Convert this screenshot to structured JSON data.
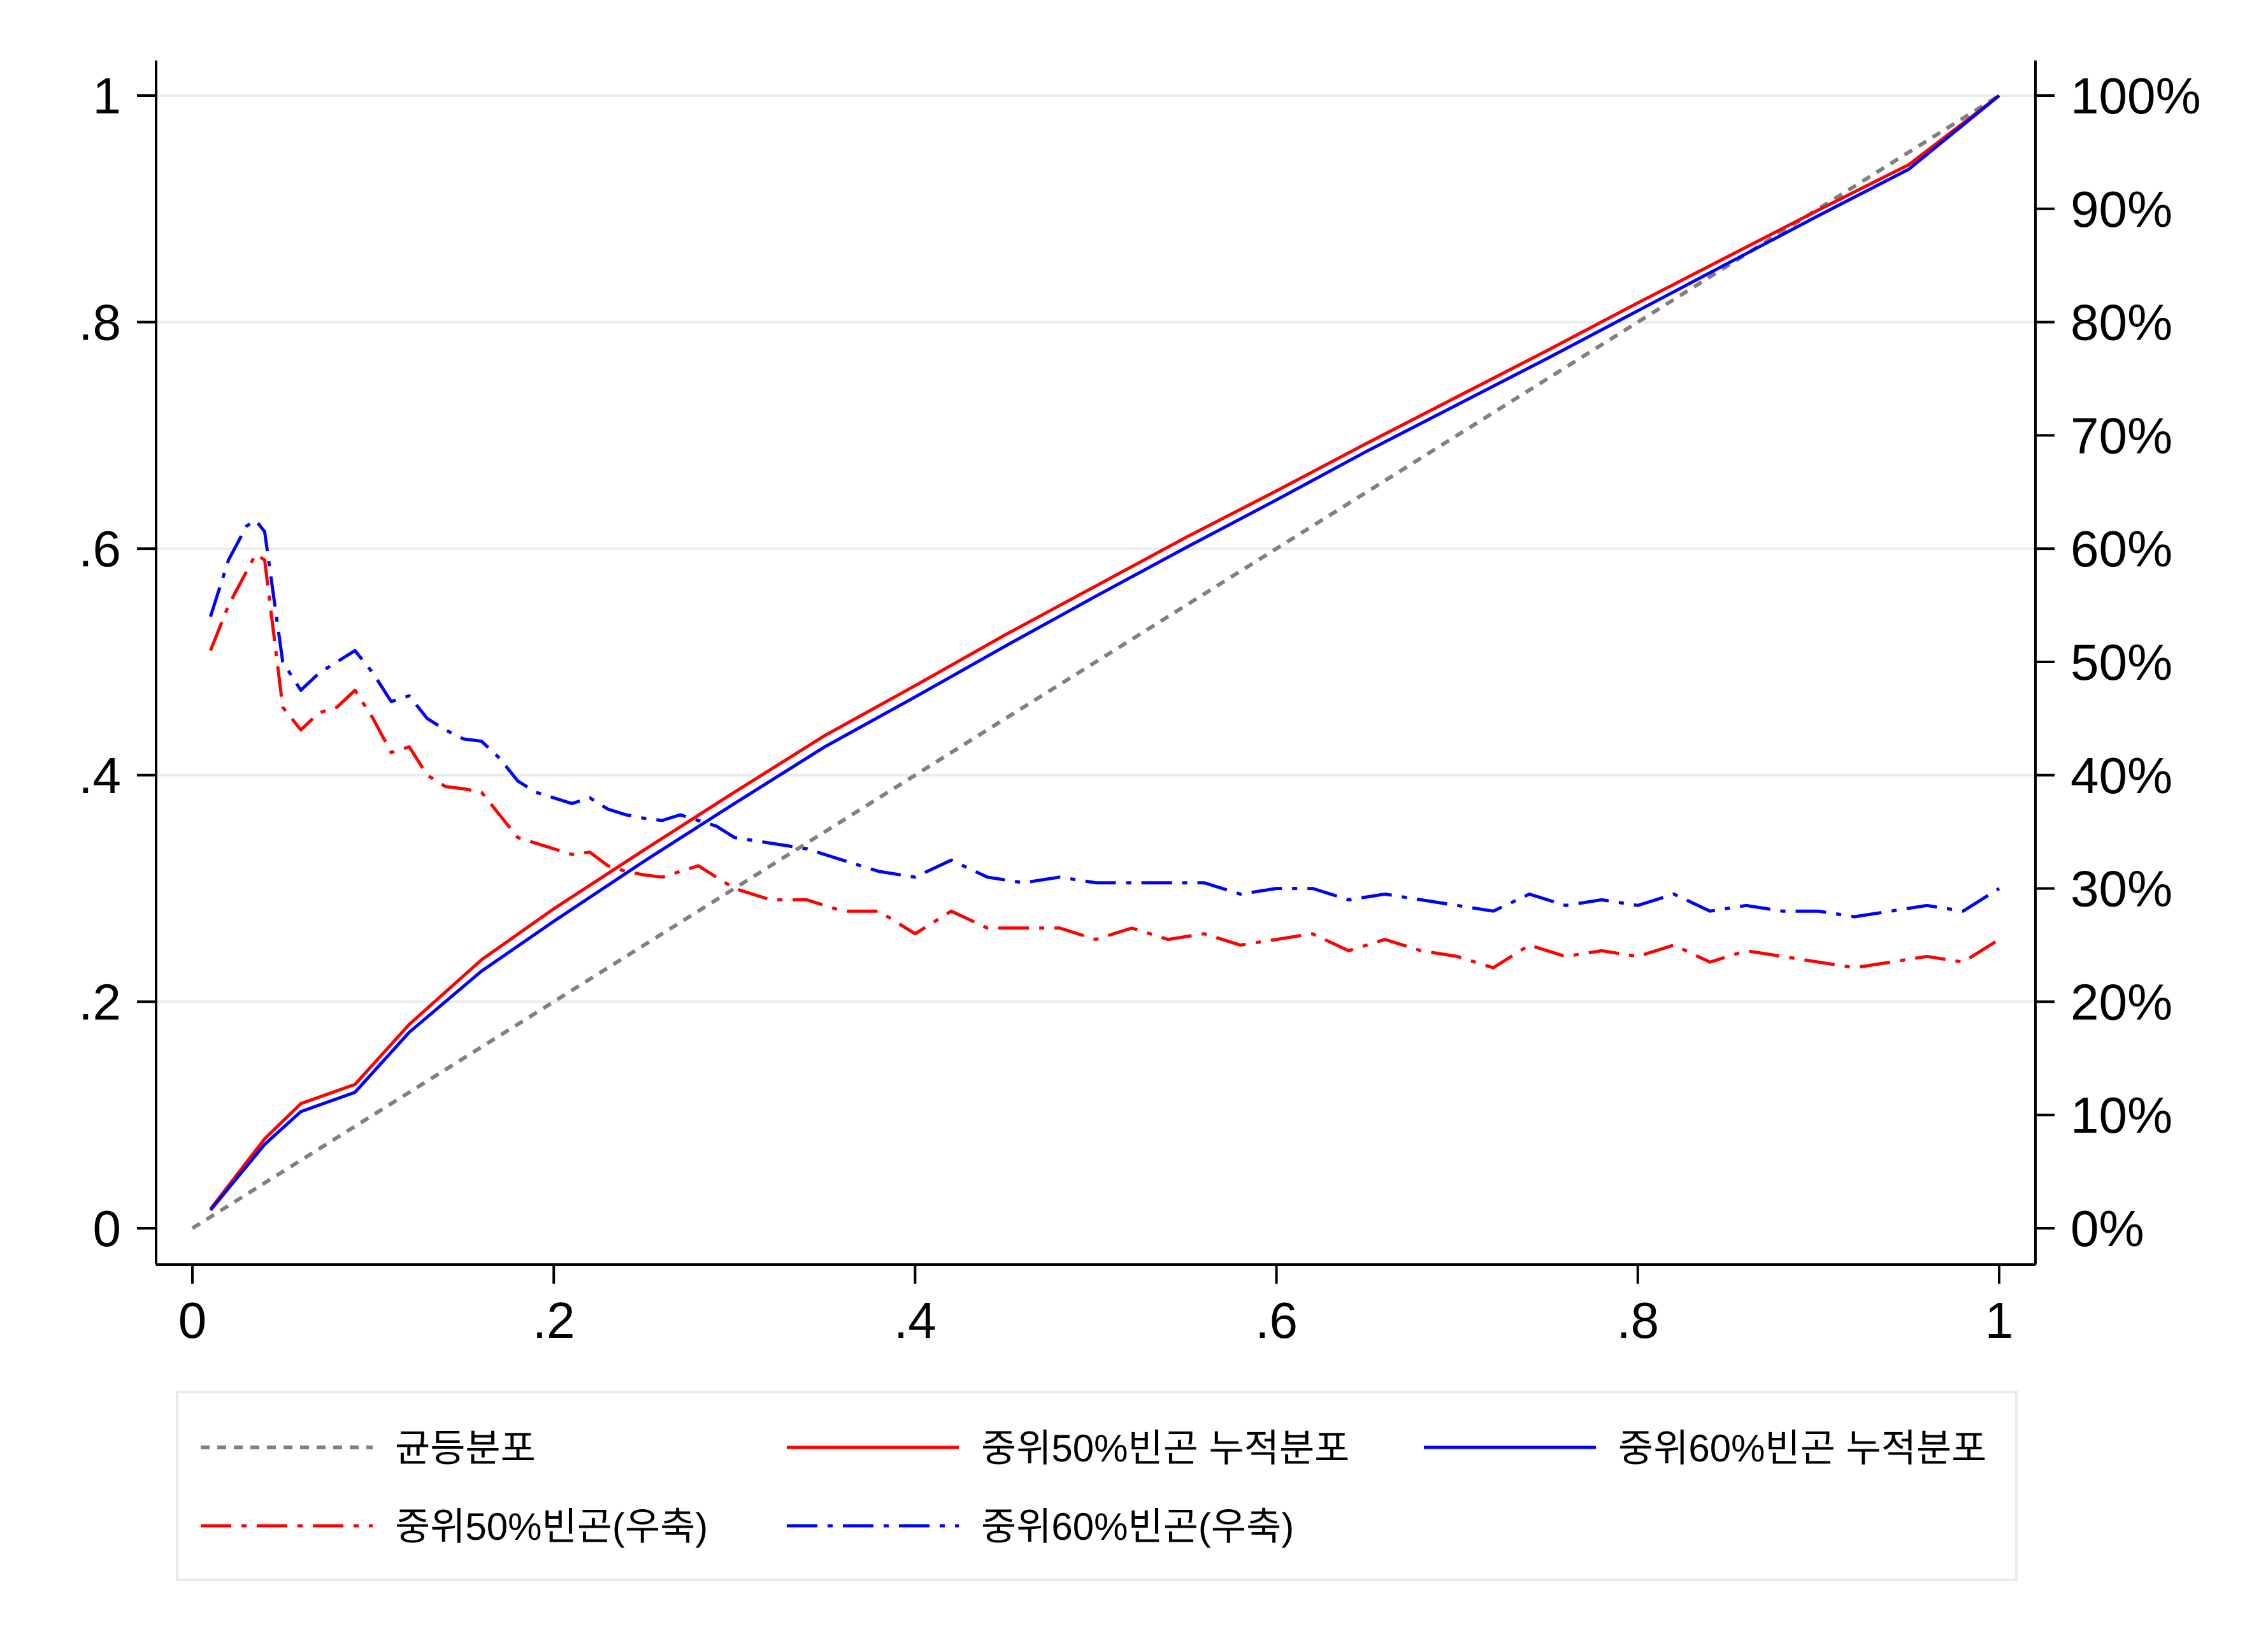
{
  "chart_data": {
    "type": "line",
    "title": "",
    "xlabel": "",
    "ylabel": "",
    "y2label": "",
    "xlim": [
      0,
      1
    ],
    "ylim": [
      0,
      1
    ],
    "y2lim": [
      0,
      100
    ],
    "x_ticks": [
      "0",
      ".2",
      ".4",
      ".6",
      ".8",
      "1"
    ],
    "x_tick_values": [
      0,
      0.2,
      0.4,
      0.6,
      0.8,
      1
    ],
    "y_ticks": [
      "0",
      ".2",
      ".4",
      ".6",
      ".8",
      "1"
    ],
    "y_tick_values": [
      0,
      0.2,
      0.4,
      0.6,
      0.8,
      1
    ],
    "y2_ticks": [
      "0%",
      "10%",
      "20%",
      "30%",
      "40%",
      "50%",
      "60%",
      "70%",
      "80%",
      "90%",
      "100%"
    ],
    "y2_tick_values": [
      0,
      10,
      20,
      30,
      40,
      50,
      60,
      70,
      80,
      90,
      100
    ],
    "grid": "horizontal",
    "legend_position": "bottom",
    "series": [
      {
        "name": "균등분포",
        "axis": "left",
        "color": "#808080",
        "style": "dotted",
        "x": [
          0,
          1
        ],
        "y": [
          0,
          1
        ]
      },
      {
        "name": "중위50%빈곤 누적분포",
        "axis": "left",
        "color": "#ff0000",
        "style": "solid",
        "x": [
          0.01,
          0.04,
          0.06,
          0.09,
          0.12,
          0.16,
          0.2,
          0.25,
          0.3,
          0.35,
          0.4,
          0.45,
          0.5,
          0.55,
          0.6,
          0.65,
          0.7,
          0.75,
          0.8,
          0.85,
          0.9,
          0.95,
          1.0
        ],
        "y": [
          0.017,
          0.079,
          0.11,
          0.127,
          0.18,
          0.237,
          0.282,
          0.334,
          0.385,
          0.435,
          0.479,
          0.524,
          0.567,
          0.61,
          0.651,
          0.693,
          0.734,
          0.775,
          0.817,
          0.858,
          0.899,
          0.939,
          1.0
        ]
      },
      {
        "name": "중위60%빈곤 누적분포",
        "axis": "left",
        "color": "#0000ff",
        "style": "solid",
        "x": [
          0.01,
          0.04,
          0.06,
          0.09,
          0.12,
          0.16,
          0.2,
          0.25,
          0.3,
          0.35,
          0.4,
          0.45,
          0.5,
          0.55,
          0.6,
          0.65,
          0.7,
          0.75,
          0.8,
          0.85,
          0.9,
          0.95,
          1.0
        ],
        "y": [
          0.016,
          0.074,
          0.103,
          0.12,
          0.173,
          0.227,
          0.271,
          0.324,
          0.375,
          0.425,
          0.469,
          0.514,
          0.558,
          0.601,
          0.643,
          0.686,
          0.727,
          0.768,
          0.81,
          0.852,
          0.894,
          0.935,
          1.0
        ]
      },
      {
        "name": "중위50%빈곤(우축)",
        "axis": "right",
        "color": "#ff0000",
        "style": "dashdot",
        "x": [
          0.01,
          0.02,
          0.03,
          0.035,
          0.04,
          0.05,
          0.06,
          0.07,
          0.08,
          0.09,
          0.1,
          0.11,
          0.12,
          0.13,
          0.14,
          0.15,
          0.16,
          0.17,
          0.18,
          0.19,
          0.2,
          0.21,
          0.22,
          0.23,
          0.24,
          0.25,
          0.26,
          0.27,
          0.28,
          0.29,
          0.3,
          0.32,
          0.34,
          0.36,
          0.38,
          0.4,
          0.42,
          0.44,
          0.46,
          0.48,
          0.5,
          0.52,
          0.54,
          0.56,
          0.58,
          0.6,
          0.62,
          0.64,
          0.66,
          0.68,
          0.7,
          0.72,
          0.74,
          0.76,
          0.78,
          0.8,
          0.82,
          0.84,
          0.86,
          0.88,
          0.9,
          0.92,
          0.94,
          0.96,
          0.98,
          1.0
        ],
        "y": [
          51,
          55,
          58,
          59.5,
          59,
          46,
          44,
          45.5,
          46,
          47.5,
          45,
          42,
          42.5,
          40,
          39,
          38.8,
          38.5,
          36.5,
          34.5,
          34,
          33.5,
          33,
          33.2,
          32,
          31.5,
          31.2,
          31,
          31.5,
          32,
          31,
          30,
          29,
          29,
          28,
          28,
          26,
          28,
          26.5,
          26.5,
          26.5,
          25.5,
          26.5,
          25.5,
          26,
          25,
          25.5,
          26,
          24.5,
          25.5,
          24.5,
          24,
          23,
          25,
          24,
          24.5,
          24,
          25,
          23.5,
          24.5,
          24,
          23.5,
          23,
          23.5,
          24,
          23.5,
          25.5
        ]
      },
      {
        "name": "중위60%빈곤(우축)",
        "axis": "right",
        "color": "#0000ff",
        "style": "dashdot",
        "x": [
          0.01,
          0.02,
          0.03,
          0.035,
          0.04,
          0.05,
          0.06,
          0.07,
          0.08,
          0.09,
          0.1,
          0.11,
          0.12,
          0.13,
          0.14,
          0.15,
          0.16,
          0.17,
          0.18,
          0.19,
          0.2,
          0.21,
          0.22,
          0.23,
          0.24,
          0.25,
          0.26,
          0.27,
          0.28,
          0.29,
          0.3,
          0.32,
          0.34,
          0.36,
          0.38,
          0.4,
          0.42,
          0.44,
          0.46,
          0.48,
          0.5,
          0.52,
          0.54,
          0.56,
          0.58,
          0.6,
          0.62,
          0.64,
          0.66,
          0.68,
          0.7,
          0.72,
          0.74,
          0.76,
          0.78,
          0.8,
          0.82,
          0.84,
          0.86,
          0.88,
          0.9,
          0.92,
          0.94,
          0.96,
          0.98,
          1.0
        ],
        "y": [
          54,
          59,
          62,
          62.5,
          61.5,
          50,
          47.5,
          49,
          50,
          51,
          49,
          46.5,
          47,
          45,
          44,
          43.2,
          43,
          41.5,
          39.5,
          38.5,
          38,
          37.5,
          38,
          37,
          36.5,
          36.2,
          36,
          36.5,
          36,
          35.5,
          34.5,
          34,
          33.5,
          32.5,
          31.5,
          31,
          32.5,
          31,
          30.5,
          31,
          30.5,
          30.5,
          30.5,
          30.5,
          29.5,
          30,
          30,
          29,
          29.5,
          29,
          28.5,
          28,
          29.5,
          28.5,
          29,
          28.5,
          29.5,
          28,
          28.5,
          28,
          28,
          27.5,
          28,
          28.5,
          28,
          30
        ]
      }
    ]
  }
}
